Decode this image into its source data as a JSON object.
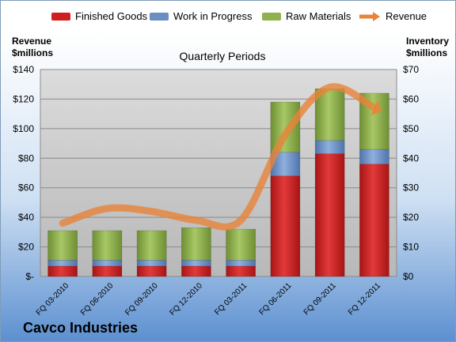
{
  "chart_data": {
    "type": "bar",
    "title": "Quarterly Periods",
    "company": "Cavco Industries",
    "left_axis_title": [
      "Revenue",
      "$millions"
    ],
    "right_axis_title": [
      "Inventory",
      "$millions"
    ],
    "categories": [
      "FQ 03-2010",
      "FQ 06-2010",
      "FQ 09-2010",
      "FQ 12-2010",
      "FQ 03-2011",
      "FQ 06-2011",
      "FQ 09-2011",
      "FQ 12-2011"
    ],
    "left_ticks": [
      "$-",
      "$20",
      "$40",
      "$60",
      "$80",
      "$100",
      "$120",
      "$140"
    ],
    "right_ticks": [
      "$0",
      "$10",
      "$20",
      "$30",
      "$40",
      "$50",
      "$60",
      "$70"
    ],
    "left_ylim": [
      0,
      140
    ],
    "right_ylim": [
      0,
      70
    ],
    "series": [
      {
        "name": "Finished Goods",
        "axis": "right",
        "kind": "stacked-bar",
        "color": "#d01f1f",
        "values": [
          3.5,
          3.5,
          3.5,
          3.5,
          3.5,
          34,
          41.5,
          38
        ]
      },
      {
        "name": "Work in Progress",
        "axis": "right",
        "kind": "stacked-bar",
        "color": "#6a8dc2",
        "values": [
          2,
          2,
          2,
          2,
          2,
          8,
          4.5,
          5
        ]
      },
      {
        "name": "Raw Materials",
        "axis": "right",
        "kind": "stacked-bar",
        "color": "#8fb24e",
        "values": [
          10,
          10,
          10,
          11,
          10.5,
          17,
          17.5,
          19
        ]
      },
      {
        "name": "Revenue",
        "axis": "left",
        "kind": "line",
        "color": "#e8833a",
        "values": [
          36,
          46,
          44,
          38,
          38,
          96,
          128,
          114
        ]
      }
    ],
    "grid": true,
    "legend_position": "top"
  }
}
